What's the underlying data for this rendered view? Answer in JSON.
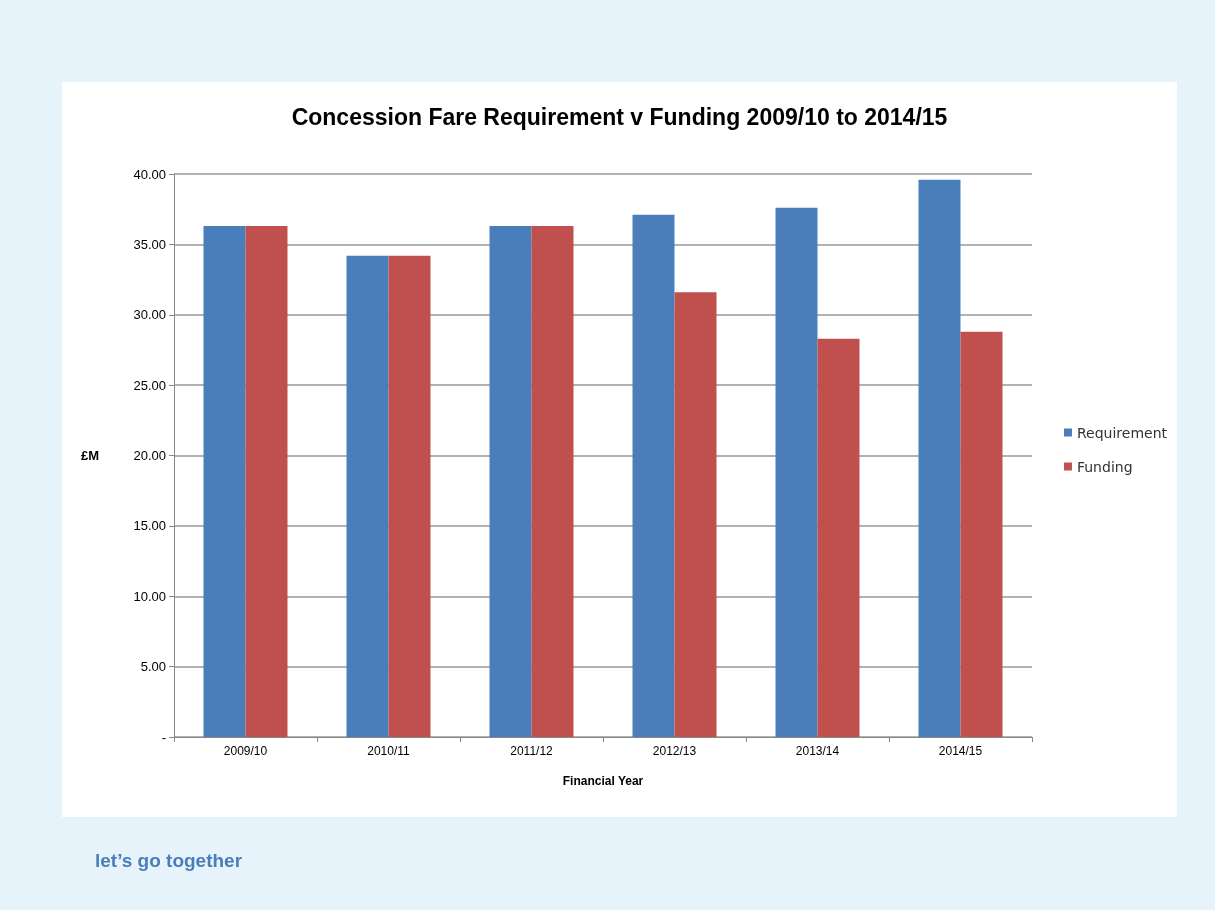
{
  "chart_data": {
    "type": "bar",
    "title": "Concession Fare Requirement v Funding 2009/10 to 2014/15",
    "xlabel": "Financial Year",
    "ylabel": "£M",
    "categories": [
      "2009/10",
      "2010/11",
      "2011/12",
      "2012/13",
      "2013/14",
      "2014/15"
    ],
    "series": [
      {
        "name": "Requirement",
        "color": "#4a7ebb",
        "values": [
          36.3,
          34.2,
          36.3,
          37.1,
          37.6,
          39.6
        ]
      },
      {
        "name": "Funding",
        "color": "#c0504d",
        "values": [
          36.3,
          34.2,
          36.3,
          31.6,
          28.3,
          28.8
        ]
      }
    ],
    "ylim": [
      0,
      40
    ],
    "yticks": [
      {
        "value": 0,
        "label": "-"
      },
      {
        "value": 5,
        "label": "5.00"
      },
      {
        "value": 10,
        "label": "10.00"
      },
      {
        "value": 15,
        "label": "15.00"
      },
      {
        "value": 20,
        "label": "20.00"
      },
      {
        "value": 25,
        "label": "25.00"
      },
      {
        "value": 30,
        "label": "30.00"
      },
      {
        "value": 35,
        "label": "35.00"
      },
      {
        "value": 40,
        "label": "40.00"
      }
    ],
    "grid": "y",
    "legend": "right",
    "annotations": [
      "let’s go together"
    ]
  }
}
